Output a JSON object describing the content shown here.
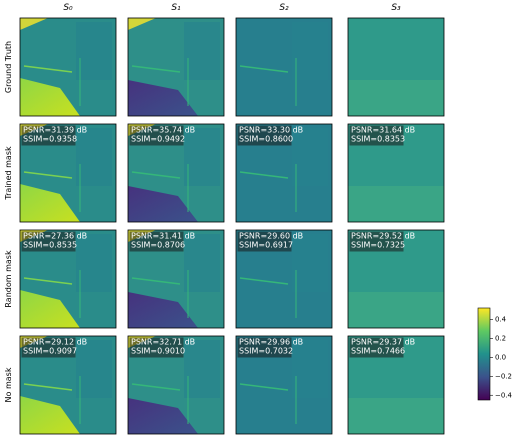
{
  "columns": [
    "S₀",
    "S₁",
    "S₂",
    "S₃"
  ],
  "rows": [
    {
      "label": "Ground Truth",
      "panels": [
        null,
        null,
        null,
        null
      ]
    },
    {
      "label": "Trained mask",
      "panels": [
        {
          "psnr": "PSNR=31.39 dB",
          "ssim": "SSIM=0.9358"
        },
        {
          "psnr": "PSNR=35.74 dB",
          "ssim": "SSIM=0.9492"
        },
        {
          "psnr": "PSNR=33.30 dB",
          "ssim": "SSIM=0.8600"
        },
        {
          "psnr": "PSNR=31.64 dB",
          "ssim": "SSIM=0.8353"
        }
      ]
    },
    {
      "label": "Random mask",
      "panels": [
        {
          "psnr": "PSNR=27.36 dB",
          "ssim": "SSIM=0.8535"
        },
        {
          "psnr": "PSNR=31.41 dB",
          "ssim": "SSIM=0.8706"
        },
        {
          "psnr": "PSNR=29.60 dB",
          "ssim": "SSIM=0.6917"
        },
        {
          "psnr": "PSNR=29.52 dB",
          "ssim": "SSIM=0.7325"
        }
      ]
    },
    {
      "label": "No mask",
      "panels": [
        {
          "psnr": "PSNR=29.12 dB",
          "ssim": "SSIM=0.9097"
        },
        {
          "psnr": "PSNR=32.71 dB",
          "ssim": "SSIM=0.9010"
        },
        {
          "psnr": "PSNR=29.96 dB",
          "ssim": "SSIM=0.7032"
        },
        {
          "psnr": "PSNR=29.37 dB",
          "ssim": "SSIM=0.7466"
        }
      ]
    }
  ],
  "colorbar": {
    "range": [
      -0.45,
      0.52
    ],
    "ticks": [
      {
        "value": 0.4,
        "label": "0.4"
      },
      {
        "value": 0.2,
        "label": "0.2"
      },
      {
        "value": 0.0,
        "label": "0.0"
      },
      {
        "value": -0.2,
        "label": "−0.2"
      },
      {
        "value": -0.4,
        "label": "−0.4"
      }
    ]
  }
}
